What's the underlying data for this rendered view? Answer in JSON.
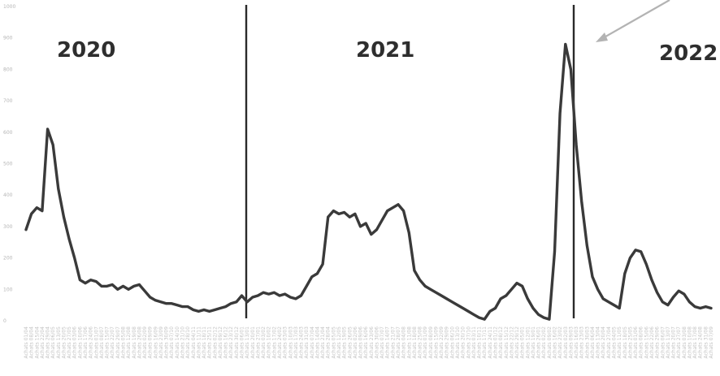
{
  "chart_data": {
    "type": "line",
    "title": "",
    "xlabel": "",
    "ylabel": "",
    "ylim": [
      0,
      1000
    ],
    "yticks": [
      "0",
      "100",
      "200",
      "300",
      "400",
      "500",
      "600",
      "700",
      "800",
      "900",
      "1000"
    ],
    "grid": false,
    "legend": "none",
    "line_color": "#3a3a3a",
    "divider_color": "#2a2a2a",
    "arrow_color": "#b3b3b3",
    "year_labels": [
      "2020",
      "2021",
      "2022"
    ],
    "series": [
      {
        "values": [
          290,
          340,
          360,
          350,
          610,
          560,
          420,
          330,
          260,
          200,
          130,
          120,
          130,
          125,
          110,
          110,
          115,
          100,
          110,
          100,
          110,
          115,
          95,
          75,
          65,
          60,
          55,
          55,
          50,
          45,
          45,
          35,
          30,
          35,
          30,
          35,
          40,
          45,
          55,
          60,
          80,
          60,
          75,
          80,
          90,
          85,
          90,
          80,
          85,
          75,
          70,
          80,
          110,
          140,
          150,
          180,
          330,
          350,
          340,
          345,
          330,
          340,
          300,
          310,
          275,
          290,
          320,
          350,
          360,
          370,
          350,
          280,
          160,
          130,
          110,
          100,
          90,
          80,
          70,
          60,
          50,
          40,
          30,
          20,
          10,
          5,
          30,
          40,
          70,
          80,
          100,
          120,
          110,
          70,
          40,
          20,
          10,
          5,
          220,
          660,
          880,
          800,
          560,
          380,
          240,
          140,
          100,
          70,
          60,
          50,
          40,
          150,
          200,
          225,
          220,
          180,
          130,
          90,
          60,
          50,
          75,
          95,
          85,
          60,
          45,
          40,
          45,
          40
        ]
      }
    ],
    "x_tick_labels": [
      "Achats 01/04",
      "Achats 08/04",
      "Achats 15/04",
      "Achats 22/04",
      "Achats 29/04",
      "Achats 06/05",
      "Achats 13/05",
      "Achats 20/05",
      "Achats 27/05",
      "Achats 03/06",
      "Achats 10/06",
      "Achats 17/06",
      "Achats 24/06",
      "Achats 01/07",
      "Achats 08/07",
      "Achats 15/07",
      "Achats 22/07",
      "Achats 29/07",
      "Achats 05/08",
      "Achats 12/08",
      "Achats 19/08",
      "Achats 26/08",
      "Achats 02/09",
      "Achats 09/09",
      "Achats 16/09",
      "Achats 23/09",
      "Achats 30/09",
      "Achats 07/10",
      "Achats 14/10",
      "Achats 21/10",
      "Achats 28/10",
      "Achats 04/11",
      "Achats 11/11",
      "Achats 18/11",
      "Achats 25/11",
      "Achats 02/12",
      "Achats 09/12",
      "Achats 16/12",
      "Achats 23/12",
      "Achats 30/12",
      "Achats 06/01",
      "Achats 13/01",
      "Achats 20/01",
      "Achats 27/01",
      "Achats 03/02",
      "Achats 10/02",
      "Achats 17/02",
      "Achats 24/02",
      "Achats 03/03",
      "Achats 10/03",
      "Achats 17/03",
      "Achats 24/03",
      "Achats 31/03",
      "Achats 07/04",
      "Achats 14/04",
      "Achats 21/04",
      "Achats 28/04",
      "Achats 05/05",
      "Achats 12/05",
      "Achats 19/05",
      "Achats 26/05",
      "Achats 02/06",
      "Achats 09/06",
      "Achats 16/06",
      "Achats 23/06",
      "Achats 30/06",
      "Achats 07/07",
      "Achats 14/07",
      "Achats 21/07",
      "Achats 28/07",
      "Achats 04/08",
      "Achats 11/08",
      "Achats 18/08",
      "Achats 25/08",
      "Achats 01/09",
      "Achats 08/09",
      "Achats 15/09",
      "Achats 22/09",
      "Achats 29/09",
      "Achats 06/10",
      "Achats 13/10",
      "Achats 20/10",
      "Achats 27/10",
      "Achats 03/11",
      "Achats 10/11",
      "Achats 17/11",
      "Achats 24/11",
      "Achats 01/12",
      "Achats 08/12",
      "Achats 15/12",
      "Achats 22/12",
      "Achats 29/12",
      "Achats 05/01",
      "Achats 12/01",
      "Achats 19/01",
      "Achats 26/01",
      "Achats 02/02",
      "Achats 09/02",
      "Achats 16/02",
      "Achats 23/02",
      "Achats 02/03",
      "Achats 09/03",
      "Achats 16/03",
      "Achats 23/03",
      "Achats 30/03",
      "Achats 06/04",
      "Achats 13/04",
      "Achats 20/04",
      "Achats 27/04",
      "Achats 04/05",
      "Achats 11/05",
      "Achats 18/05",
      "Achats 25/05",
      "Achats 01/06",
      "Achats 08/06",
      "Achats 15/06",
      "Achats 22/06",
      "Achats 29/06",
      "Achats 06/07",
      "Achats 13/07",
      "Achats 20/07",
      "Achats 27/07",
      "Achats 03/08",
      "Achats 10/08",
      "Achats 17/08",
      "Achats 24/08",
      "Achats 31/08",
      "Achats 07/09"
    ]
  }
}
